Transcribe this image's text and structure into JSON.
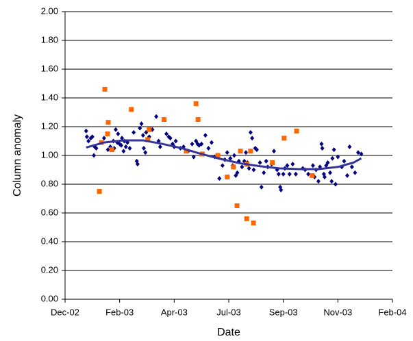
{
  "chart_data": {
    "type": "scatter",
    "x_label": "Date",
    "y_label": "Column anomaly",
    "xlim": [
      0,
      420
    ],
    "xticks": [
      {
        "value": 0,
        "label": "Dec-02"
      },
      {
        "value": 70,
        "label": "Feb-03"
      },
      {
        "value": 140,
        "label": "Apr-03"
      },
      {
        "value": 210,
        "label": "Jul-03"
      },
      {
        "value": 280,
        "label": "Sep-03"
      },
      {
        "value": 350,
        "label": "Nov-03"
      },
      {
        "value": 420,
        "label": "Feb-04"
      }
    ],
    "ylim": [
      0,
      2
    ],
    "yticks": [
      {
        "value": 0,
        "label": "0.00"
      },
      {
        "value": 0.2,
        "label": "0.20"
      },
      {
        "value": 0.4,
        "label": "0.40"
      },
      {
        "value": 0.6,
        "label": "0.60"
      },
      {
        "value": 0.8,
        "label": "0.80"
      },
      {
        "value": 1.0,
        "label": "1.00"
      },
      {
        "value": 1.2,
        "label": "1.20"
      },
      {
        "value": 1.4,
        "label": "1.40"
      },
      {
        "value": 1.6,
        "label": "1.60"
      },
      {
        "value": 1.8,
        "label": "1.80"
      },
      {
        "value": 2.0,
        "label": "2.00"
      }
    ],
    "grid": true,
    "series": [
      {
        "color": "#000080",
        "marker": "diamond",
        "x": [
          27,
          28,
          30,
          33,
          35,
          37,
          38,
          40,
          50,
          55,
          58,
          62,
          63,
          65,
          67,
          68,
          70,
          72,
          73,
          75,
          76,
          78,
          80,
          83,
          88,
          92,
          93,
          96,
          98,
          100,
          101,
          103,
          104,
          108,
          112,
          117,
          120,
          122,
          130,
          133,
          135,
          138,
          140,
          142,
          148,
          152,
          158,
          163,
          165,
          168,
          170,
          172,
          175,
          180,
          184,
          188,
          192,
          198,
          202,
          205,
          208,
          212,
          215,
          217,
          219,
          221,
          223,
          227,
          230,
          232,
          234,
          236,
          238,
          240,
          242,
          244,
          246,
          250,
          252,
          255,
          258,
          260,
          265,
          268,
          272,
          274,
          276,
          277,
          280,
          282,
          285,
          288,
          292,
          296,
          305,
          308,
          312,
          318,
          320,
          322,
          325,
          327,
          329,
          330,
          332,
          333,
          335,
          337,
          340,
          342,
          343,
          345,
          347,
          350,
          355,
          358,
          362,
          365,
          368,
          372,
          376,
          380
        ],
        "values": [
          1.17,
          1.13,
          1.1,
          1.12,
          1.13,
          1.0,
          1.06,
          1.05,
          1.12,
          1.04,
          1.06,
          1.1,
          1.05,
          1.18,
          1.09,
          1.15,
          1.08,
          1.07,
          1.12,
          1.03,
          1.1,
          1.06,
          1.09,
          1.05,
          1.16,
          0.96,
          0.94,
          1.19,
          1.22,
          1.14,
          1.05,
          1.02,
          1.16,
          1.13,
          1.18,
          1.27,
          1.1,
          1.06,
          1.15,
          1.13,
          1.12,
          1.08,
          1.06,
          1.1,
          1.05,
          1.06,
          1.03,
          1.08,
          0.99,
          1.1,
          1.08,
          1.07,
          1.08,
          1.14,
          1.05,
          1.09,
          0.99,
          0.84,
          0.93,
          0.97,
          1.02,
          0.98,
          0.93,
          1.0,
          0.86,
          0.88,
          0.96,
          0.92,
          0.96,
          1.02,
          0.95,
          0.91,
          1.16,
          1.12,
          0.9,
          1.05,
          1.04,
          0.95,
          0.78,
          0.88,
          0.96,
          0.92,
          0.94,
          1.03,
          0.9,
          0.87,
          0.78,
          0.76,
          0.87,
          0.91,
          0.93,
          0.87,
          0.94,
          0.87,
          0.91,
          0.9,
          0.87,
          0.93,
          0.85,
          0.9,
          0.82,
          0.92,
          1.08,
          1.05,
          0.87,
          0.85,
          0.93,
          0.95,
          0.88,
          0.82,
          0.98,
          1.04,
          0.8,
          0.99,
          0.92,
          0.96,
          0.86,
          1.06,
          0.92,
          0.88,
          1.02,
          1.01
        ]
      },
      {
        "color": "#ff6600",
        "marker": "square",
        "x": [
          44,
          46.6,
          51,
          54.5,
          55.4,
          60,
          85,
          108,
          106,
          127,
          155.5,
          168,
          170.6,
          176,
          196,
          208,
          216,
          220.6,
          225,
          233,
          233,
          238,
          241.7,
          266,
          281,
          297,
          317
        ],
        "values": [
          0.75,
          1.09,
          1.46,
          1.15,
          1.23,
          1.04,
          1.32,
          1.18,
          1.11,
          1.25,
          1.03,
          1.36,
          1.25,
          1.01,
          1.0,
          0.85,
          0.92,
          0.65,
          1.03,
          0.94,
          0.56,
          1.03,
          0.53,
          0.95,
          1.12,
          1.17,
          0.86
        ]
      },
      {
        "color": "#333399",
        "marker": "line",
        "x": [
          27,
          50,
          75,
          100,
          125,
          150,
          175,
          200,
          225,
          250,
          275,
          300,
          325,
          350,
          370,
          380
        ],
        "values": [
          1.055,
          1.09,
          1.105,
          1.105,
          1.08,
          1.05,
          1.01,
          0.975,
          0.945,
          0.925,
          0.91,
          0.905,
          0.905,
          0.92,
          0.95,
          0.98
        ]
      }
    ]
  }
}
